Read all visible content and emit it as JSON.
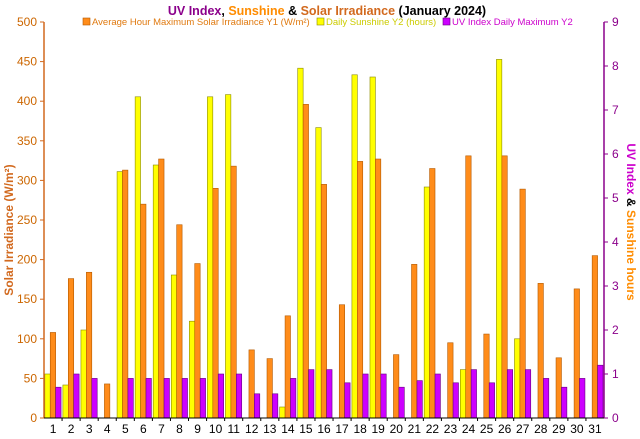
{
  "chart_data": {
    "type": "bar",
    "title": {
      "parts": [
        {
          "text": "UV Index",
          "color": "#8b008b"
        },
        {
          "text": ", ",
          "color": "#000000"
        },
        {
          "text": "Sunshine",
          "color": "#ff8c00"
        },
        {
          "text": " & ",
          "color": "#000000"
        },
        {
          "text": "Solar Irradiance",
          "color": "#d2691e"
        },
        {
          "text": " (January 2024)",
          "color": "#000000"
        }
      ]
    },
    "ylabel_left": "Solar Irradiance (W/m²)",
    "ylabel_right": {
      "parts": [
        {
          "text": "UV Index",
          "color": "#cc00cc"
        },
        {
          "text": " & ",
          "color": "#000000"
        },
        {
          "text": "Sunshine hours",
          "color": "#ff8c00"
        }
      ]
    },
    "y1_lim": [
      0,
      500
    ],
    "y1_ticks": [
      0,
      50,
      100,
      150,
      200,
      250,
      300,
      350,
      400,
      450,
      500
    ],
    "y2_lim": [
      0,
      9
    ],
    "y2_ticks": [
      0,
      1,
      2,
      3,
      4,
      5,
      6,
      7,
      8,
      9
    ],
    "categories": [
      "1",
      "2",
      "3",
      "4",
      "5",
      "6",
      "7",
      "8",
      "9",
      "10",
      "11",
      "12",
      "13",
      "14",
      "15",
      "16",
      "17",
      "18",
      "19",
      "20",
      "21",
      "22",
      "23",
      "24",
      "25",
      "26",
      "27",
      "28",
      "29",
      "30",
      "31"
    ],
    "legend": {
      "placement": "top"
    },
    "series": [
      {
        "name": "Daily Sunshine Y2 (hours)",
        "axis": "y2",
        "color": "#ffff00",
        "edge": "#8b8b00",
        "values": [
          1.0,
          0.75,
          2.0,
          0,
          5.6,
          7.3,
          5.75,
          3.25,
          2.2,
          7.3,
          7.35,
          0,
          0,
          0.25,
          7.95,
          6.6,
          0,
          7.8,
          7.75,
          0,
          0,
          5.25,
          0,
          1.1,
          0,
          8.15,
          1.8,
          0,
          0,
          0,
          0
        ]
      },
      {
        "name": "Average Hour Maximum Solar Irradiance Y1 (W/m²)",
        "axis": "y1",
        "color": "#ff8c1a",
        "edge": "#b35900",
        "values": [
          108,
          176,
          184,
          43,
          313,
          270,
          327,
          244,
          195,
          290,
          318,
          86,
          75,
          129,
          396,
          295,
          143,
          324,
          327,
          80,
          194,
          315,
          95,
          331,
          106,
          331,
          289,
          170,
          76,
          163,
          205
        ]
      },
      {
        "name": "UV Index Daily Maximum Y2",
        "axis": "y2",
        "color": "#cc00ff",
        "edge": "#660080",
        "values": [
          0.7,
          1.0,
          0.9,
          0,
          0.9,
          0.9,
          0.9,
          0.9,
          0.9,
          1.0,
          1.0,
          0.55,
          0.55,
          0.9,
          1.1,
          1.1,
          0.8,
          1.0,
          1.0,
          0.7,
          0.85,
          1.0,
          0.8,
          1.1,
          0.8,
          1.1,
          1.1,
          0.9,
          0.7,
          0.9,
          1.2
        ]
      }
    ],
    "axis_colors": {
      "left": "#d2691e",
      "right": "#8b008b",
      "left_tick_text": "#cc6600",
      "right_tick_text": "#8b008b"
    }
  }
}
